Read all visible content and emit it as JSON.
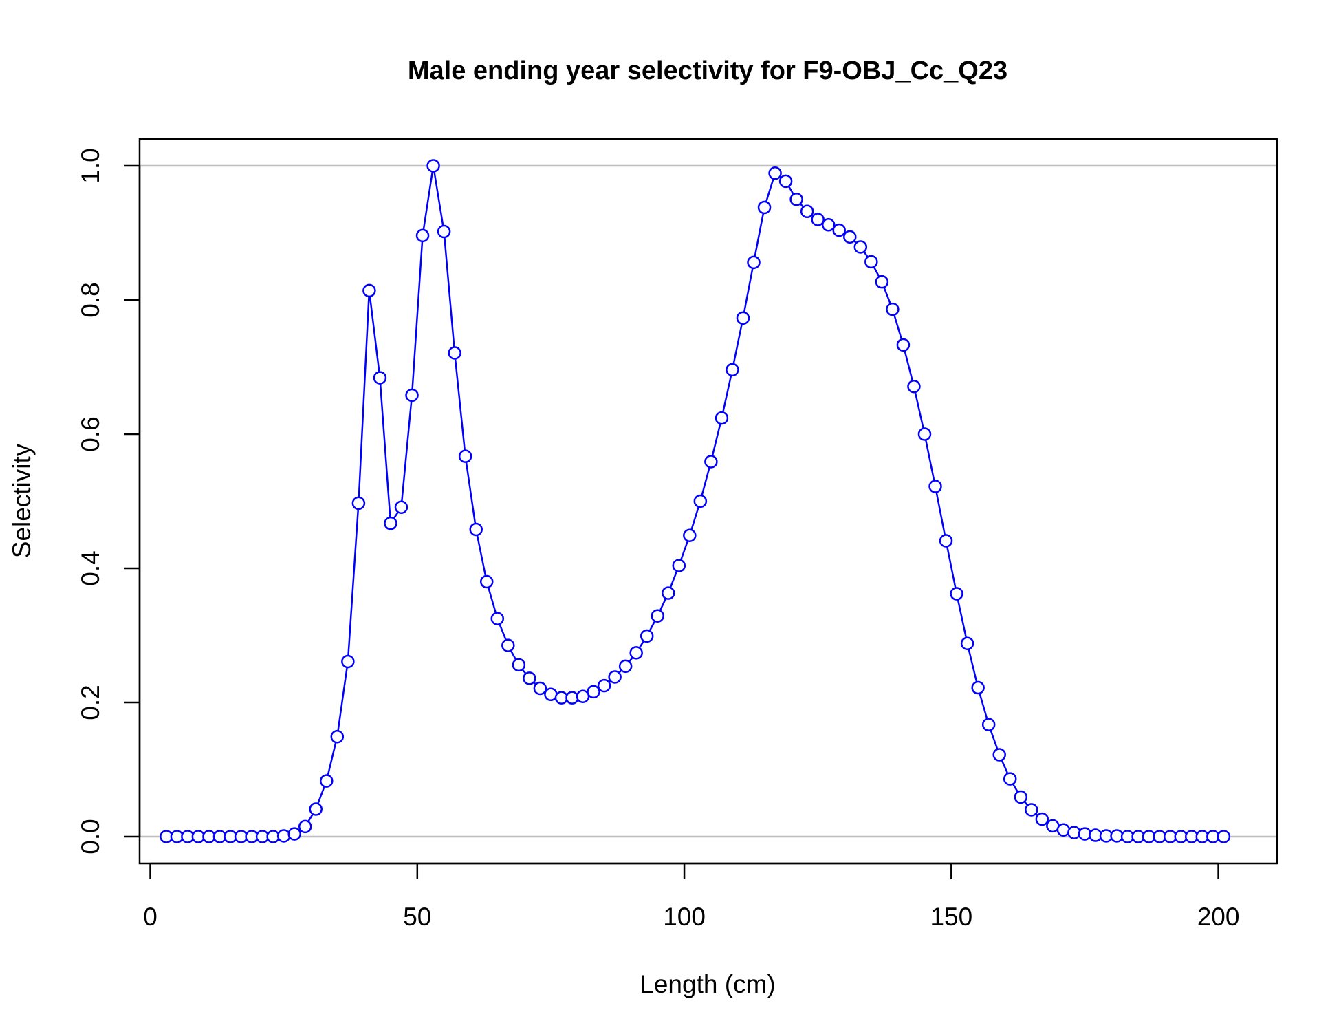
{
  "chart_data": {
    "type": "line",
    "title": "Male ending year selectivity for F9-OBJ_Cc_Q23",
    "xlabel": "Length (cm)",
    "ylabel": "Selectivity",
    "xlim": [
      -2,
      211
    ],
    "ylim": [
      -0.04,
      1.04
    ],
    "xticks": [
      0,
      50,
      100,
      150,
      200
    ],
    "xtick_labels": [
      "0",
      "50",
      "100",
      "150",
      "200"
    ],
    "yticks": [
      0,
      0.2,
      0.4,
      0.6,
      0.8,
      1.0
    ],
    "ytick_labels": [
      "0.0",
      "0.2",
      "0.4",
      "0.6",
      "0.8",
      "1.0"
    ],
    "reference_lines": [
      0,
      1
    ],
    "reference_line_color": "#bebebe",
    "series_color": "#0000ff",
    "marker": "open-circle",
    "grid": false,
    "series": [
      {
        "x": [
          3,
          5,
          7,
          9,
          11,
          13,
          15,
          17,
          19,
          21,
          23,
          25,
          27,
          29,
          31,
          33,
          35,
          37,
          39,
          41,
          43,
          45,
          47,
          49,
          51,
          53,
          55,
          57,
          59,
          61,
          63,
          65,
          67,
          69,
          71,
          73,
          75,
          77,
          79,
          81,
          83,
          85,
          87,
          89,
          91,
          93,
          95,
          97,
          99,
          101,
          103,
          105,
          107,
          109,
          111,
          113,
          115,
          117,
          119,
          121,
          123,
          125,
          127,
          129,
          131,
          133,
          135,
          137,
          139,
          141,
          143,
          145,
          147,
          149,
          151,
          153,
          155,
          157,
          159,
          161,
          163,
          165,
          167,
          169,
          171,
          173,
          175,
          177,
          179,
          181,
          183,
          185,
          187,
          189,
          191,
          193,
          195,
          197,
          199,
          201
        ],
        "values": [
          0,
          0,
          0,
          0,
          0,
          0,
          0,
          0,
          0,
          0,
          0,
          0.001,
          0.004,
          0.015,
          0.041,
          0.083,
          0.149,
          0.261,
          0.497,
          0.814,
          0.684,
          0.467,
          0.491,
          0.658,
          0.896,
          1.0,
          0.902,
          0.721,
          0.567,
          0.458,
          0.38,
          0.325,
          0.285,
          0.256,
          0.236,
          0.221,
          0.212,
          0.207,
          0.207,
          0.209,
          0.216,
          0.225,
          0.238,
          0.254,
          0.274,
          0.299,
          0.329,
          0.363,
          0.404,
          0.449,
          0.5,
          0.559,
          0.624,
          0.696,
          0.773,
          0.856,
          0.938,
          0.989,
          0.977,
          0.95,
          0.932,
          0.92,
          0.912,
          0.904,
          0.894,
          0.879,
          0.857,
          0.827,
          0.786,
          0.733,
          0.671,
          0.6,
          0.522,
          0.441,
          0.362,
          0.288,
          0.222,
          0.167,
          0.122,
          0.086,
          0.059,
          0.04,
          0.026,
          0.016,
          0.01,
          0.006,
          0.004,
          0.002,
          0.001,
          0.001,
          0,
          0,
          0,
          0,
          0,
          0,
          0,
          0,
          0,
          0
        ]
      }
    ]
  }
}
